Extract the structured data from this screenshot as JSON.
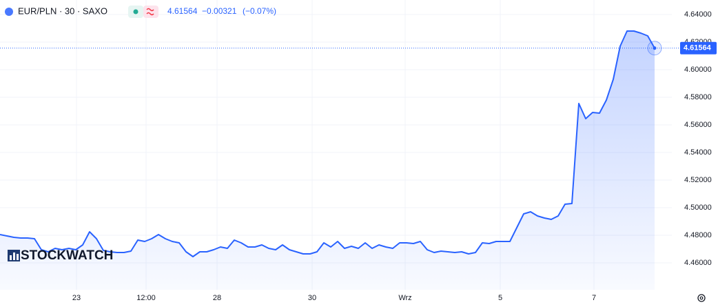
{
  "chart_data": {
    "type": "area",
    "header": {
      "symbol": "EUR/PLN · 30 · SAXO",
      "price": "4.61564",
      "change": "−0.00321",
      "change_pct": "(−0.07%)"
    },
    "watermark": "STOCKWATCH",
    "color": "#2962ff",
    "grid": true,
    "xlim": [
      0,
      97.5
    ],
    "ylim": [
      4.4405,
      4.6505
    ],
    "yticks": [
      {
        "value": 4.46,
        "label": "4.46000"
      },
      {
        "value": 4.48,
        "label": "4.48000"
      },
      {
        "value": 4.5,
        "label": "4.50000"
      },
      {
        "value": 4.52,
        "label": "4.52000"
      },
      {
        "value": 4.54,
        "label": "4.54000"
      },
      {
        "value": 4.56,
        "label": "4.56000"
      },
      {
        "value": 4.58,
        "label": "4.58000"
      },
      {
        "value": 4.6,
        "label": "4.60000"
      },
      {
        "value": 4.62,
        "label": "4.62000"
      },
      {
        "value": 4.64,
        "label": "4.64000"
      }
    ],
    "xticks": [
      {
        "value": 11.1,
        "label": "23"
      },
      {
        "value": 21.2,
        "label": "12:00"
      },
      {
        "value": 31.5,
        "label": "28"
      },
      {
        "value": 45.3,
        "label": "30"
      },
      {
        "value": 58.8,
        "label": "Wrz"
      },
      {
        "value": 72.6,
        "label": "5"
      },
      {
        "value": 86.2,
        "label": "7"
      }
    ],
    "last_value_label": "4.61564",
    "x": [
      0,
      1,
      2,
      3,
      4,
      5,
      6,
      7,
      8,
      9,
      10,
      11,
      12,
      13,
      14,
      15,
      16,
      17,
      18,
      19,
      20,
      21,
      22,
      23,
      24,
      25,
      26,
      27,
      28,
      29,
      30,
      31,
      32,
      33,
      34,
      35,
      36,
      37,
      38,
      39,
      40,
      41,
      42,
      43,
      44,
      45,
      46,
      47,
      48,
      49,
      50,
      51,
      52,
      53,
      54,
      55,
      56,
      57,
      58,
      59,
      60,
      61,
      62,
      63,
      64,
      65,
      66,
      67,
      68,
      69,
      70,
      71,
      72,
      73,
      74,
      75,
      76,
      77,
      78,
      79,
      80,
      81,
      82,
      83,
      84,
      85,
      86,
      87,
      88,
      89,
      90,
      91,
      92,
      93,
      94,
      95
    ],
    "values": [
      4.4805,
      4.4795,
      4.4785,
      4.478,
      4.478,
      4.4775,
      4.4695,
      4.468,
      4.4705,
      4.4695,
      4.4705,
      4.4695,
      4.473,
      4.4825,
      4.4775,
      4.469,
      4.468,
      4.4675,
      4.4675,
      4.4685,
      4.4765,
      4.4755,
      4.4775,
      4.4805,
      4.4775,
      4.4755,
      4.4745,
      4.468,
      4.4645,
      4.468,
      4.468,
      4.4695,
      4.4715,
      4.4705,
      4.4765,
      4.4745,
      4.4715,
      4.4715,
      4.473,
      4.4705,
      4.4695,
      4.473,
      4.4695,
      4.468,
      4.4665,
      4.4665,
      4.468,
      4.4745,
      4.4715,
      4.4755,
      4.4705,
      4.472,
      4.4705,
      4.4745,
      4.4705,
      4.473,
      4.4715,
      4.4705,
      4.4745,
      4.4745,
      4.474,
      4.4755,
      4.4695,
      4.4675,
      4.4685,
      4.468,
      4.4675,
      4.468,
      4.4665,
      4.4675,
      4.4745,
      4.474,
      4.4755,
      4.4755,
      4.4755,
      4.4855,
      4.4955,
      4.497,
      4.494,
      4.4925,
      4.4915,
      4.494,
      4.5025,
      4.503,
      4.5755,
      4.5645,
      4.569,
      4.5685,
      4.578,
      4.593,
      4.617,
      4.628,
      4.628,
      4.6265,
      4.6245,
      4.61564
    ]
  }
}
